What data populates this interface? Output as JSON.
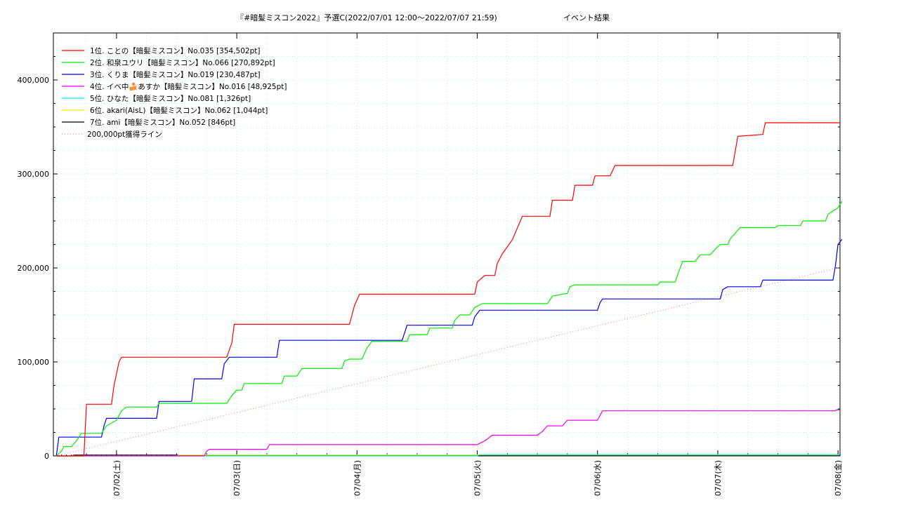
{
  "chart_data": {
    "type": "line",
    "title": "『#暗髪ミスコン2022』予選C(2022/07/01 12:00～2022/07/07 21:59)",
    "subtitle": "イベント結果",
    "xlabel": "",
    "ylabel": "",
    "x_unit": "hours since 2022/07/01 00:00",
    "xlim": [
      11.4,
      168.4
    ],
    "ylim": [
      0,
      400000
    ],
    "y_max_plot": 450000,
    "yticks": [
      0,
      100000,
      200000,
      300000,
      400000
    ],
    "ytick_labels": [
      "0",
      "100,000",
      "200,000",
      "300,000",
      "400,000"
    ],
    "xticks": [
      24,
      48,
      72,
      96,
      120,
      144,
      168
    ],
    "xtick_labels": [
      "07/02(土)",
      "07/03(日)",
      "07/04(月)",
      "07/05(火)",
      "07/06(水)",
      "07/07(木)",
      "07/08(金)"
    ],
    "grid": true,
    "legend_position": "top-left",
    "series": [
      {
        "name": "1位. ことの【暗髪ミスコン】No.035 [354,502pt]",
        "color": "#ff0000",
        "points": [
          [
            12,
            0
          ],
          [
            17.5,
            0
          ],
          [
            18,
            55000
          ],
          [
            23,
            55000
          ],
          [
            23.5,
            75000
          ],
          [
            24.5,
            100000
          ],
          [
            25,
            105000
          ],
          [
            46,
            105000
          ],
          [
            47,
            120000
          ],
          [
            47.5,
            140000
          ],
          [
            70.5,
            140000
          ],
          [
            71.5,
            160000
          ],
          [
            72.5,
            172000
          ],
          [
            95.5,
            172000
          ],
          [
            96,
            185000
          ],
          [
            97.5,
            192000
          ],
          [
            99.5,
            192000
          ],
          [
            100,
            205000
          ],
          [
            101,
            215000
          ],
          [
            103,
            230000
          ],
          [
            105,
            255000
          ],
          [
            110.5,
            255000
          ],
          [
            111,
            272000
          ],
          [
            115,
            272000
          ],
          [
            115.5,
            288000
          ],
          [
            119,
            288000
          ],
          [
            119.5,
            298000
          ],
          [
            122.5,
            298000
          ],
          [
            123.5,
            309000
          ],
          [
            147,
            309000
          ],
          [
            148,
            340000
          ],
          [
            153,
            342000
          ],
          [
            153.5,
            354502
          ],
          [
            168.3,
            354502
          ]
        ]
      },
      {
        "name": "2位. 和泉ユウリ【暗髪ミスコン】No.066 [270,892pt]",
        "color": "#00ee00",
        "points": [
          [
            12,
            0
          ],
          [
            13,
            5000
          ],
          [
            13.5,
            10000
          ],
          [
            15,
            10000
          ],
          [
            16,
            16000
          ],
          [
            17,
            24000
          ],
          [
            21,
            24000
          ],
          [
            22,
            32000
          ],
          [
            24,
            38000
          ],
          [
            25,
            48000
          ],
          [
            26,
            52000
          ],
          [
            32,
            52000
          ],
          [
            32.5,
            56000
          ],
          [
            46,
            56000
          ],
          [
            47,
            64000
          ],
          [
            48,
            70000
          ],
          [
            49,
            70000
          ],
          [
            49.5,
            77000
          ],
          [
            57,
            77000
          ],
          [
            57.5,
            85000
          ],
          [
            60,
            85000
          ],
          [
            61,
            93000
          ],
          [
            69,
            93000
          ],
          [
            69.5,
            101000
          ],
          [
            70.5,
            103000
          ],
          [
            73,
            103000
          ],
          [
            74,
            115000
          ],
          [
            75,
            122000
          ],
          [
            82,
            122000
          ],
          [
            82.5,
            129000
          ],
          [
            86,
            129000
          ],
          [
            86.5,
            136000
          ],
          [
            91,
            136000
          ],
          [
            91.5,
            144000
          ],
          [
            92.5,
            150000
          ],
          [
            94.5,
            150000
          ],
          [
            95.5,
            158000
          ],
          [
            97,
            162000
          ],
          [
            110,
            162000
          ],
          [
            111,
            170000
          ],
          [
            114,
            173000
          ],
          [
            114.5,
            180000
          ],
          [
            115.5,
            182000
          ],
          [
            132,
            182000
          ],
          [
            132.5,
            185000
          ],
          [
            135.5,
            185000
          ],
          [
            136,
            193000
          ],
          [
            137,
            207000
          ],
          [
            139.5,
            207000
          ],
          [
            140.5,
            214000
          ],
          [
            142.5,
            214000
          ],
          [
            143.5,
            220000
          ],
          [
            144.5,
            225000
          ],
          [
            146,
            225000
          ],
          [
            146.5,
            231000
          ],
          [
            147.5,
            237000
          ],
          [
            148.5,
            243000
          ],
          [
            155.5,
            243000
          ],
          [
            156,
            245000
          ],
          [
            160.5,
            245000
          ],
          [
            161,
            250000
          ],
          [
            165.5,
            250000
          ],
          [
            166,
            257000
          ],
          [
            168,
            264000
          ],
          [
            168.8,
            270892
          ]
        ]
      },
      {
        "name": "3位. くりま【暗髪ミスコン】No.019 [230,487pt]",
        "color": "#0000ff",
        "points": [
          [
            12,
            0
          ],
          [
            12.5,
            20000
          ],
          [
            21,
            20000
          ],
          [
            21.5,
            32000
          ],
          [
            22,
            40000
          ],
          [
            32,
            40000
          ],
          [
            32.5,
            58000
          ],
          [
            39,
            58000
          ],
          [
            39.5,
            82000
          ],
          [
            45,
            82000
          ],
          [
            45.5,
            98000
          ],
          [
            46.5,
            105000
          ],
          [
            56,
            105000
          ],
          [
            56.5,
            123000
          ],
          [
            81,
            123000
          ],
          [
            81.5,
            131000
          ],
          [
            82,
            139000
          ],
          [
            95,
            139000
          ],
          [
            95.5,
            148000
          ],
          [
            96.5,
            155000
          ],
          [
            120,
            155000
          ],
          [
            120.5,
            163000
          ],
          [
            121,
            167000
          ],
          [
            144.5,
            167000
          ],
          [
            145,
            177000
          ],
          [
            146,
            180000
          ],
          [
            152.5,
            180000
          ],
          [
            153,
            187000
          ],
          [
            167,
            187000
          ],
          [
            167.5,
            203000
          ],
          [
            168,
            225000
          ],
          [
            168.8,
            230487
          ]
        ]
      },
      {
        "name": "4位. イベ中🍰あすか【暗髪ミスコン】No.016 [48,925pt]",
        "color": "#ee00ee",
        "points": [
          [
            12,
            0
          ],
          [
            41.5,
            0
          ],
          [
            42,
            5000
          ],
          [
            42.5,
            7000
          ],
          [
            54,
            7000
          ],
          [
            54.5,
            12000
          ],
          [
            96,
            12000
          ],
          [
            97.5,
            16000
          ],
          [
            99,
            22000
          ],
          [
            108,
            22000
          ],
          [
            109,
            26000
          ],
          [
            110,
            32000
          ],
          [
            113,
            32000
          ],
          [
            114,
            38000
          ],
          [
            120,
            38000
          ],
          [
            121,
            48000
          ],
          [
            167.5,
            48000
          ],
          [
            167.6,
            48925
          ],
          [
            168.3,
            48925
          ]
        ]
      },
      {
        "name": "5位. ひなた【暗髪ミスコン】No.081 [1,326pt]",
        "color": "#00eeee",
        "points": [
          [
            12,
            0
          ],
          [
            96,
            0
          ],
          [
            96.5,
            1326
          ],
          [
            168.3,
            1326
          ]
        ]
      },
      {
        "name": "6位. akari(AisL)【暗髪ミスコン】No.062 [1,044pt]",
        "color": "#eeee00",
        "points": [
          [
            12,
            0
          ],
          [
            36,
            0
          ],
          [
            36.5,
            1044
          ],
          [
            168.3,
            1044
          ]
        ]
      },
      {
        "name": "7位. ami【暗髪ミスコン】No.052 [846pt]",
        "color": "#000000",
        "points": [
          [
            12,
            0
          ],
          [
            15,
            0
          ],
          [
            15.5,
            846
          ],
          [
            168.3,
            846
          ]
        ]
      },
      {
        "name": "200,000pt獲得ライン",
        "color": "#ff7777",
        "dashed": true,
        "points": [
          [
            12,
            0
          ],
          [
            168,
            200000
          ]
        ]
      }
    ]
  }
}
